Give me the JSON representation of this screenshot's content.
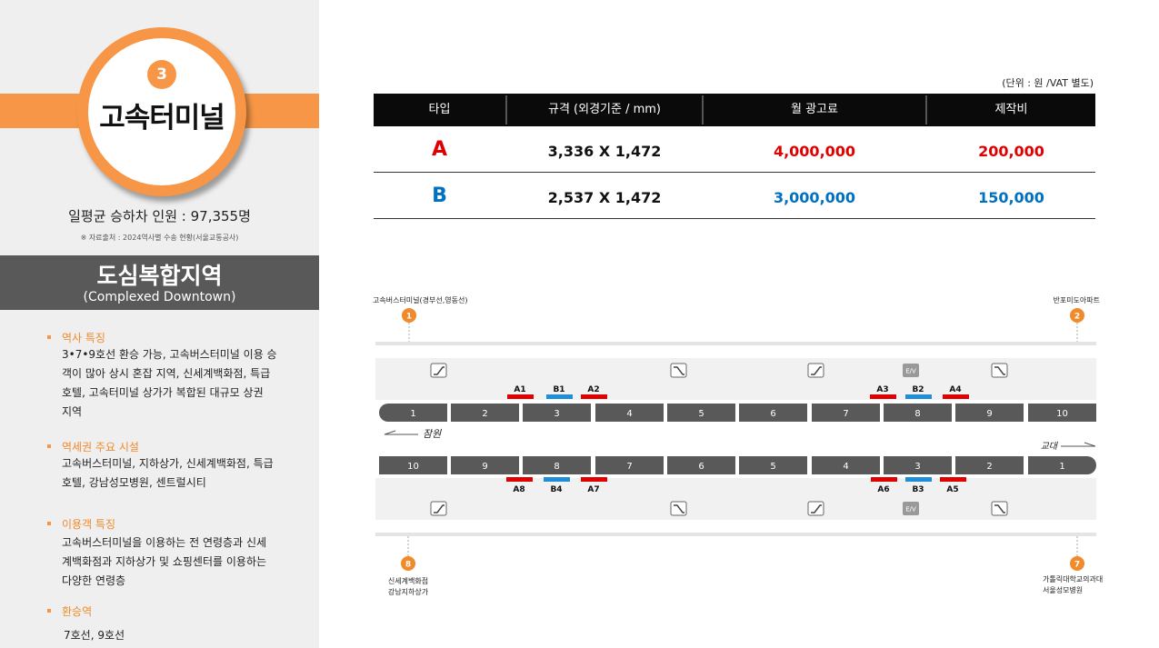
{
  "station": {
    "number": "3",
    "name": "고속터미널",
    "passengers": "일평균 승하차 인원 : 97,355명",
    "source": "※ 자료출처 : 2024역사별 수송 현황(서울교통공사)"
  },
  "zone": {
    "title": "도심복합지역",
    "subtitle": "(Complexed Downtown)"
  },
  "sections": [
    {
      "title": "역사 특징",
      "body": [
        "3•7•9호선 환승 가능, 고속버스터미널 이용 승",
        "객이 많아 상시 혼잡 지역, 신세계백화점, 특급",
        "호텔, 고속터미널 상가가 복합된 대규모 상권",
        "지역"
      ]
    },
    {
      "title": "역세권 주요 시설",
      "body": [
        "고속버스터미널, 지하상가, 신세계백화점, 특급",
        "호텔, 강남성모병원, 센트럴시티"
      ]
    },
    {
      "title": "이용객 특징",
      "body": [
        "고속버스터미널을 이용하는 전 연령층과 신세",
        "계백화점과 지하상가 및 쇼핑센터를 이용하는",
        "다양한 연령층"
      ]
    },
    {
      "title": "환승역",
      "body": [
        "7호선, 9호선"
      ]
    }
  ],
  "table": {
    "unit": "(단위 : 원 /VAT 별도)",
    "headers": [
      "타입",
      "규격 (외경기준 / mm)",
      "월 광고료",
      "제작비"
    ],
    "rows": [
      {
        "type": "A",
        "size": "3,336 X 1,472",
        "fee": "4,000,000",
        "cost": "200,000",
        "color": "#e00000"
      },
      {
        "type": "B",
        "size": "2,537 X 1,472",
        "fee": "3,000,000",
        "cost": "150,000",
        "color": "#0070c0"
      }
    ]
  },
  "diagram": {
    "exits": [
      {
        "num": "1",
        "label": [
          "고속버스터미널(경부선,영동선)"
        ]
      },
      {
        "num": "2",
        "label": [
          "반포미도아파트"
        ]
      },
      {
        "num": "8",
        "label": [
          "신세계백화점",
          "강남지하상가"
        ]
      },
      {
        "num": "7",
        "label": [
          "가톨릭대학교의과대학",
          "서울성모병원"
        ]
      }
    ],
    "top_cars": [
      "1",
      "2",
      "3",
      "4",
      "5",
      "6",
      "7",
      "8",
      "9",
      "10"
    ],
    "bottom_cars": [
      "10",
      "9",
      "8",
      "7",
      "6",
      "5",
      "4",
      "3",
      "2",
      "1"
    ],
    "top_ads": [
      "A1",
      "B1",
      "A2",
      "A3",
      "B2",
      "A4"
    ],
    "bottom_ads": [
      "A8",
      "B4",
      "A7",
      "A6",
      "B3",
      "A5"
    ],
    "dir_left": "잠원",
    "dir_right": "교대",
    "ev_label": "E/V",
    "colors": {
      "ad_a": "#e00000",
      "ad_b": "#1f8ed6",
      "car": "#595959",
      "exit": "#f08a2a"
    }
  }
}
